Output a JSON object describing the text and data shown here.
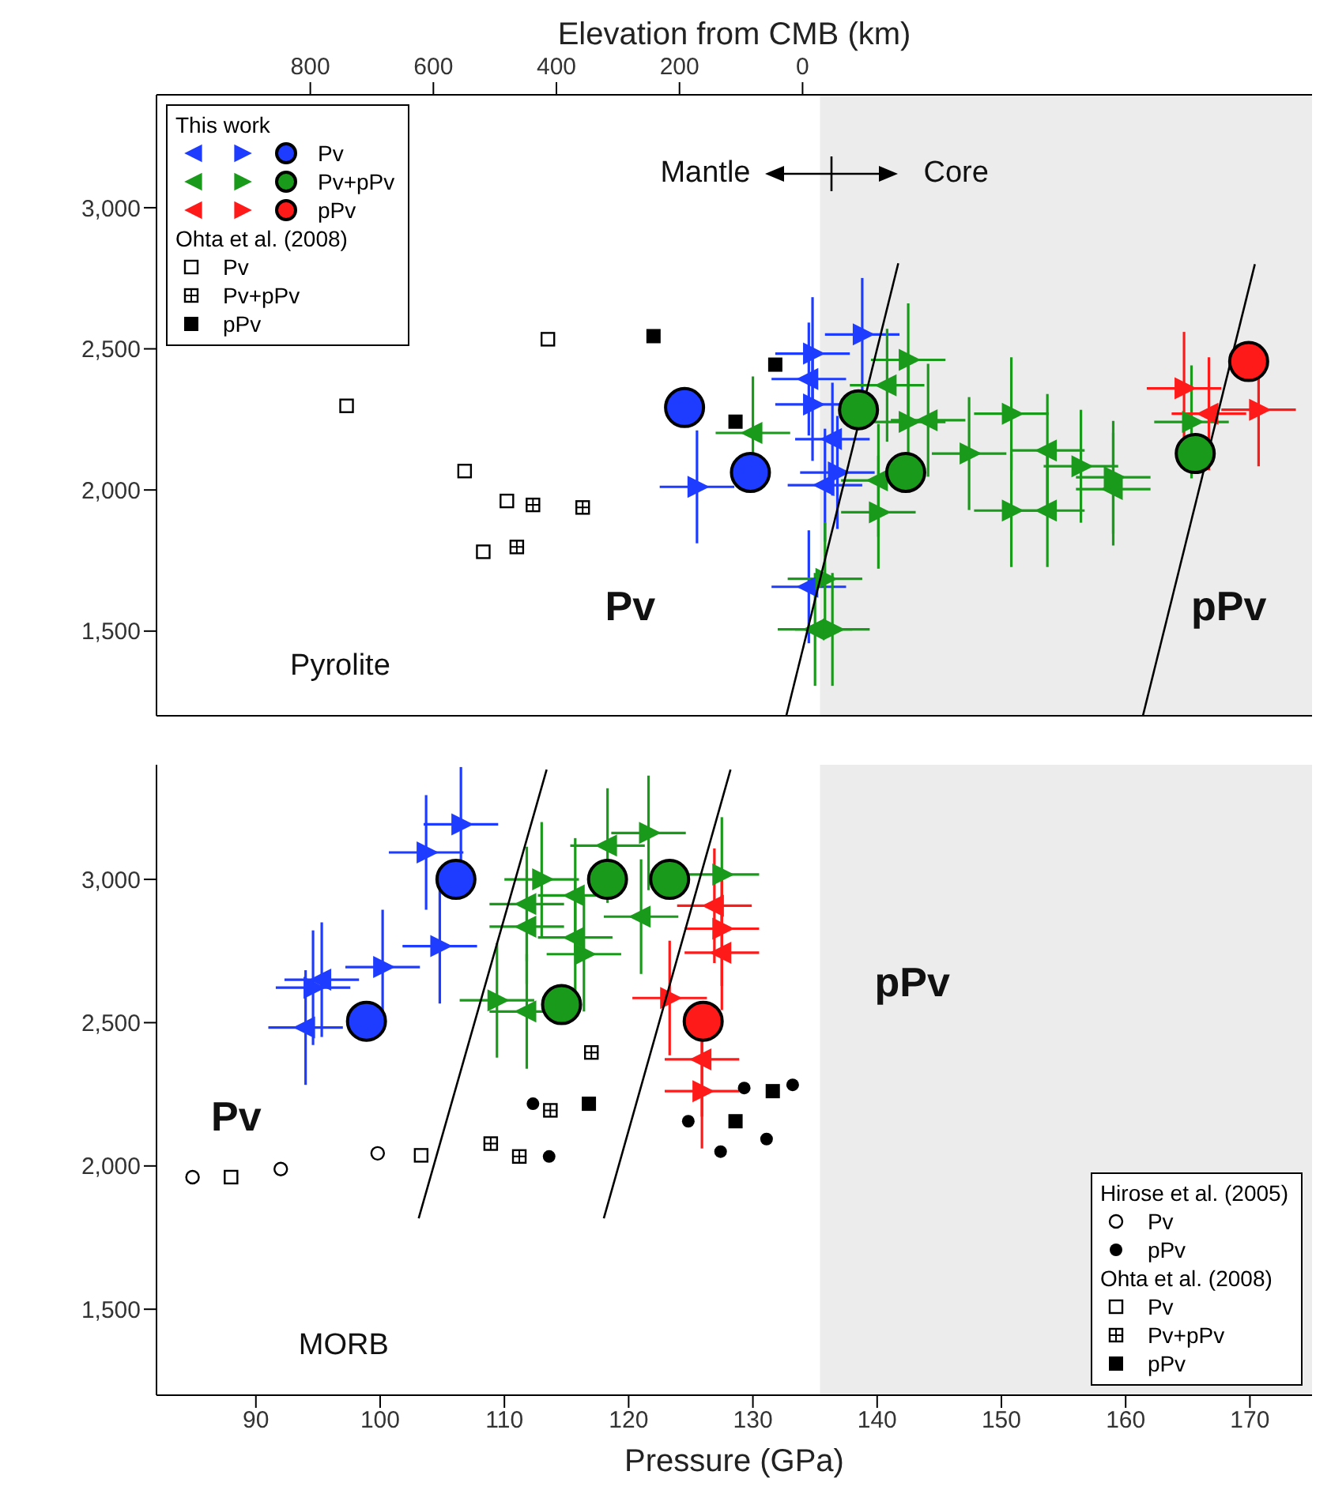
{
  "chart_data": [
    {
      "type": "scatter",
      "x2label": "Elevation from CMB (km)",
      "legend_title": "This work",
      "legend": "top left",
      "tick_labels": "y",
      "xlim": [
        82,
        175
      ],
      "xticks": [
        90,
        100,
        110,
        120,
        130,
        140,
        150,
        160,
        170
      ],
      "x2lim": [
        1050,
        -828
      ],
      "x2ticks": [
        800,
        600,
        400,
        200,
        0
      ],
      "ylim": [
        1200,
        3400
      ],
      "yticks": [
        {
          "value": 1500,
          "label": "1,500"
        },
        {
          "value": 2000,
          "label": "2,000"
        },
        {
          "value": 2500,
          "label": "2,500"
        },
        {
          "value": 3000,
          "label": "3,000"
        }
      ],
      "bands": [
        {
          "axis": "x",
          "from": 135.4,
          "to": 175,
          "color": "#ececec"
        }
      ],
      "annotations": [
        "Ohta et al. (2008)",
        "Mantle",
        "Core",
        "Pv",
        "pPv",
        "Pyrolite"
      ],
      "series": [
        {
          "name": "Pv",
          "marker": "circle",
          "color": "#1e3cff",
          "x": [
            124.5,
            129.8
          ],
          "values": [
            2292,
            2062
          ]
        },
        {
          "name": "Pv+pPv",
          "marker": "circle",
          "color": "#1a9a1a",
          "x": [
            138.5,
            142.3,
            165.6
          ],
          "values": [
            2284,
            2062,
            2129
          ]
        },
        {
          "name": "pPv",
          "marker": "circle",
          "color": "#ff1a1a",
          "x": [
            169.9
          ],
          "values": [
            2455
          ]
        },
        {
          "marker": "triangle",
          "color": "#1e3cff",
          "x": [
            134.5,
            136.4,
            135.8,
            134.5
          ],
          "values": [
            2393,
            2180,
            2017,
            1657
          ],
          "errors": [
            200,
            200,
            200,
            200
          ],
          "xerrors": [
            3,
            3,
            3,
            3
          ]
        },
        {
          "marker": "triangle",
          "color": "#1e3cff",
          "x": [
            138.8,
            134.8,
            134.8,
            136.8,
            125.5
          ],
          "values": [
            2551,
            2483,
            2303,
            2062,
            2011
          ],
          "errors": [
            200,
            200,
            200,
            200,
            200
          ],
          "xerrors": [
            3,
            3,
            3,
            3,
            3
          ]
        },
        {
          "marker": "triangle",
          "color": "#1a9a1a",
          "x": [
            130.0,
            135.0,
            140.8,
            144.1,
            140.1,
            153.7,
            153.7,
            159.0
          ],
          "values": [
            2202,
            1506,
            2371,
            2247,
            2034,
            2140,
            1927,
            2003
          ],
          "errors": [
            200,
            200,
            200,
            200,
            200,
            200,
            200,
            200
          ],
          "xerrors": [
            3,
            3,
            3,
            3,
            3,
            3,
            3,
            3
          ]
        },
        {
          "marker": "triangle",
          "color": "#1a9a1a",
          "x": [
            135.8,
            136.4,
            142.5,
            142.5,
            140.1,
            147.4,
            150.8,
            150.8,
            156.4,
            159.0,
            165.3
          ],
          "values": [
            1685,
            1506,
            2461,
            2241,
            1921,
            2129,
            2270,
            1927,
            2084,
            2045,
            2241
          ],
          "errors": [
            200,
            200,
            200,
            200,
            200,
            200,
            200,
            200,
            200,
            200,
            200
          ],
          "xerrors": [
            3,
            3,
            3,
            3,
            3,
            3,
            3,
            3,
            3,
            3,
            3
          ]
        },
        {
          "marker": "triangle",
          "color": "#ff1a1a",
          "x": [
            166.7
          ],
          "values": [
            2270
          ],
          "errors": [
            200
          ],
          "xerrors": [
            3
          ]
        },
        {
          "marker": "triangle",
          "color": "#ff1a1a",
          "x": [
            164.7,
            170.7
          ],
          "values": [
            2360,
            2284
          ],
          "errors": [
            200,
            200
          ],
          "xerrors": [
            3,
            3
          ]
        },
        {
          "name": "Pv",
          "marker": "square",
          "color": "#000000",
          "x": [
            113.5,
            97.3,
            106.8,
            110.2,
            108.3
          ],
          "values": [
            2534,
            2298,
            2067,
            1961,
            1781
          ]
        },
        {
          "name": "Pv+pPv",
          "marker": "square",
          "color": "#000000",
          "x": [
            112.3,
            116.3,
            111.0
          ],
          "values": [
            1947,
            1938,
            1798
          ]
        },
        {
          "name": "pPv",
          "marker": "square",
          "color": "#000000",
          "x": [
            122.0,
            131.8,
            128.6
          ],
          "values": [
            2545,
            2444,
            2242
          ]
        },
        {
          "type": "line",
          "color": "#000000",
          "x": [
            132.7,
            141.7
          ],
          "values": [
            1202,
            2803
          ]
        },
        {
          "type": "line",
          "color": "#000000",
          "x": [
            161.4,
            170.4
          ],
          "values": [
            1202,
            2800
          ]
        }
      ]
    },
    {
      "type": "scatter",
      "xlabel": "Pressure (GPa)",
      "legend_title": "Hirose et al. (2005)",
      "legend": "bottom right",
      "xlim": [
        82,
        175
      ],
      "xticks": [
        90,
        100,
        110,
        120,
        130,
        140,
        150,
        160,
        170
      ],
      "ylim": [
        1200,
        3400
      ],
      "yticks": [
        {
          "value": 1500,
          "label": "1,500"
        },
        {
          "value": 2000,
          "label": "2,000"
        },
        {
          "value": 2500,
          "label": "2,500"
        },
        {
          "value": 3000,
          "label": "3,000"
        }
      ],
      "bands": [
        {
          "axis": "x",
          "from": 135.4,
          "to": 175,
          "color": "#ececec"
        }
      ],
      "annotations": [
        "Ohta et al. (2008)",
        "Pv",
        "pPv",
        "MORB"
      ],
      "series": [
        {
          "marker": "circle",
          "color": "#1e3cff",
          "x": [
            106.1,
            98.9
          ],
          "values": [
            3000,
            2505
          ]
        },
        {
          "marker": "circle",
          "color": "#1a9a1a",
          "x": [
            118.3,
            123.3,
            114.6
          ],
          "values": [
            3000,
            3000,
            2563
          ]
        },
        {
          "marker": "circle",
          "color": "#ff1a1a",
          "x": [
            126.0
          ],
          "values": [
            2505
          ]
        },
        {
          "marker": "triangle",
          "color": "#1e3cff",
          "x": [
            95.3,
            94.0
          ],
          "values": [
            2650,
            2483
          ],
          "errors": [
            200,
            200
          ],
          "xerrors": [
            3,
            3
          ]
        },
        {
          "marker": "triangle",
          "color": "#1e3cff",
          "x": [
            106.5,
            103.7,
            104.8,
            100.2,
            94.6
          ],
          "values": [
            3192,
            3094,
            2767,
            2694,
            2622
          ],
          "errors": [
            200,
            200,
            200,
            200,
            200
          ],
          "xerrors": [
            3,
            3,
            3,
            3,
            3
          ]
        },
        {
          "marker": "triangle",
          "color": "#1a9a1a",
          "x": [
            111.8,
            111.8,
            115.7,
            115.7,
            118.3,
            121.0,
            111.8
          ],
          "values": [
            2914,
            2835,
            2944,
            2797,
            3118,
            2870,
            2539
          ],
          "errors": [
            200,
            200,
            200,
            200,
            200,
            200,
            200
          ],
          "xerrors": [
            3,
            3,
            3,
            3,
            3,
            3,
            3
          ]
        },
        {
          "marker": "triangle",
          "color": "#1a9a1a",
          "x": [
            113.0,
            116.4,
            121.6,
            127.5,
            109.4
          ],
          "values": [
            3000,
            2739,
            3162,
            3017,
            2578
          ],
          "errors": [
            200,
            200,
            200,
            200,
            200
          ],
          "xerrors": [
            3,
            3,
            3,
            3,
            3
          ]
        },
        {
          "marker": "triangle",
          "color": "#ff1a1a",
          "x": [
            126.9,
            127.5,
            125.9
          ],
          "values": [
            2908,
            2744,
            2372
          ],
          "errors": [
            200,
            200,
            200
          ],
          "xerrors": [
            3,
            3,
            3
          ]
        },
        {
          "marker": "triangle",
          "color": "#ff1a1a",
          "x": [
            127.5,
            123.3,
            125.9
          ],
          "values": [
            2828,
            2586,
            2261
          ],
          "errors": [
            200,
            200,
            200
          ],
          "xerrors": [
            3,
            3,
            3
          ]
        },
        {
          "name": "Pv",
          "marker": "circle",
          "color": "#000000",
          "x": [
            84.9,
            92.0,
            99.8
          ],
          "values": [
            1961,
            1989,
            2044
          ]
        },
        {
          "name": "pPv",
          "marker": "circle",
          "color": "#000000",
          "x": [
            112.3,
            113.6,
            124.8,
            127.4,
            129.3,
            131.1,
            133.2
          ],
          "values": [
            2217,
            2033,
            2156,
            2050,
            2272,
            2094,
            2283
          ]
        },
        {
          "name": "Pv",
          "marker": "square",
          "color": "#000000",
          "x": [
            88.0,
            103.3
          ],
          "values": [
            1961,
            2037
          ]
        },
        {
          "name": "Pv+pPv",
          "marker": "square",
          "color": "#000000",
          "x": [
            108.9,
            111.2,
            113.7,
            117.0
          ],
          "values": [
            2078,
            2033,
            2194,
            2396
          ]
        },
        {
          "name": "pPv",
          "marker": "square",
          "color": "#000000",
          "x": [
            116.8,
            128.6,
            131.6
          ],
          "values": [
            2217,
            2156,
            2261
          ]
        },
        {
          "type": "line",
          "color": "#000000",
          "x": [
            103.1,
            113.4
          ],
          "values": [
            1817,
            3383
          ]
        },
        {
          "type": "line",
          "color": "#000000",
          "x": [
            118.0,
            128.2
          ],
          "values": [
            1817,
            3383
          ]
        }
      ]
    }
  ]
}
